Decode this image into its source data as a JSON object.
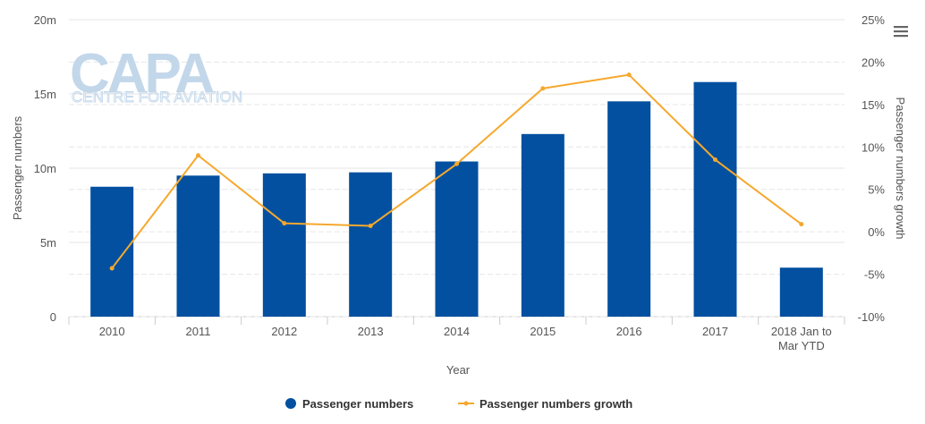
{
  "chart_data": {
    "type": "bar",
    "categories": [
      "2010",
      "2011",
      "2012",
      "2013",
      "2014",
      "2015",
      "2016",
      "2017",
      "2018 Jan to Mar YTD"
    ],
    "series": [
      {
        "name": "Passenger numbers",
        "type": "bar",
        "axis": "left",
        "color": "#0350a0",
        "values": [
          8.75,
          9.5,
          9.65,
          9.72,
          10.45,
          12.3,
          14.5,
          15.8,
          3.3
        ]
      },
      {
        "name": "Passenger numbers growth",
        "type": "line",
        "axis": "right",
        "color": "#f5a82d",
        "values": [
          -4.3,
          9.0,
          1.0,
          0.7,
          8.0,
          16.9,
          18.5,
          8.5,
          0.9
        ]
      }
    ],
    "xlabel": "Year",
    "ylabel": "Passenger numbers",
    "y2label": "Passenger numbers growth",
    "ylim": [
      0,
      20
    ],
    "y2lim": [
      -10,
      25
    ],
    "yticks": [
      "0",
      "5m",
      "10m",
      "15m",
      "20m"
    ],
    "y2ticks": [
      "-10%",
      "-5%",
      "0%",
      "5%",
      "10%",
      "15%",
      "20%",
      "25%"
    ],
    "grid": true,
    "legend_position": "bottom-center"
  },
  "watermark": {
    "brand": "CAPA",
    "tagline": "CENTRE FOR AVIATION"
  },
  "menu_icon": "hamburger-menu-icon"
}
